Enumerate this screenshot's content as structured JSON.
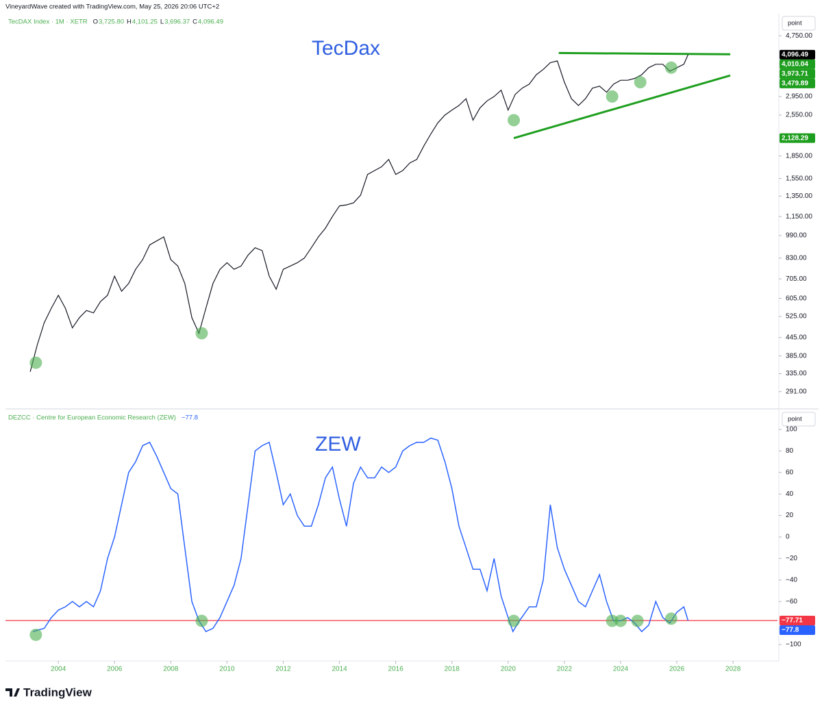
{
  "header": {
    "credit": "VineyardWave created with TradingView.com, May 25, 2026 20:06 UTC+2"
  },
  "footer": {
    "logo": "TradingView"
  },
  "chart_data": [
    {
      "type": "line",
      "log_scale": true,
      "annotation": "TecDax",
      "scale_button": "point",
      "ohlc": [
        {
          "label": "O",
          "value": "3,725.80"
        },
        {
          "label": "H",
          "value": "4,101.25"
        },
        {
          "label": "L",
          "value": "3,696.37"
        },
        {
          "label": "C",
          "value": "4,096.49"
        }
      ],
      "x": [
        2003.0,
        2003.25,
        2003.5,
        2003.75,
        2004.0,
        2004.25,
        2004.5,
        2004.75,
        2005.0,
        2005.25,
        2005.5,
        2005.75,
        2006.0,
        2006.25,
        2006.5,
        2006.75,
        2007.0,
        2007.25,
        2007.5,
        2007.75,
        2008.0,
        2008.25,
        2008.5,
        2008.75,
        2009.0,
        2009.25,
        2009.5,
        2009.75,
        2010.0,
        2010.25,
        2010.5,
        2010.75,
        2011.0,
        2011.25,
        2011.5,
        2011.75,
        2012.0,
        2012.25,
        2012.5,
        2012.75,
        2013.0,
        2013.25,
        2013.5,
        2013.75,
        2014.0,
        2014.25,
        2014.5,
        2014.75,
        2015.0,
        2015.25,
        2015.5,
        2015.75,
        2016.0,
        2016.25,
        2016.5,
        2016.75,
        2017.0,
        2017.25,
        2017.5,
        2017.75,
        2018.0,
        2018.25,
        2018.5,
        2018.75,
        2019.0,
        2019.25,
        2019.5,
        2019.75,
        2020.0,
        2020.25,
        2020.5,
        2020.75,
        2021.0,
        2021.25,
        2021.5,
        2021.75,
        2022.0,
        2022.25,
        2022.5,
        2022.75,
        2023.0,
        2023.25,
        2023.5,
        2023.75,
        2024.0,
        2024.25,
        2024.5,
        2024.75,
        2025.0,
        2025.25,
        2025.5,
        2025.75,
        2026.0,
        2026.25,
        2026.4
      ],
      "series": [
        {
          "name": "TecDAX Index · 1M · XETR",
          "color": "#131722",
          "values": [
            340,
            420,
            500,
            560,
            620,
            560,
            480,
            520,
            550,
            540,
            590,
            620,
            720,
            640,
            680,
            760,
            820,
            920,
            950,
            980,
            820,
            780,
            680,
            520,
            460,
            560,
            680,
            760,
            800,
            760,
            780,
            850,
            900,
            880,
            720,
            650,
            760,
            780,
            800,
            830,
            900,
            980,
            1050,
            1150,
            1250,
            1260,
            1280,
            1360,
            1600,
            1650,
            1700,
            1800,
            1600,
            1650,
            1750,
            1800,
            2000,
            2200,
            2400,
            2550,
            2650,
            2750,
            2900,
            2450,
            2700,
            2850,
            2950,
            3100,
            2650,
            3000,
            3150,
            3250,
            3500,
            3650,
            3850,
            3900,
            3300,
            2900,
            2750,
            2900,
            3150,
            3200,
            3050,
            3250,
            3350,
            3350,
            3400,
            3500,
            3700,
            3800,
            3800,
            3600,
            3700,
            3800,
            4096.49
          ]
        }
      ],
      "xlim": [
        2002.12,
        2029.58
      ],
      "ylim": [
        261,
        5590
      ],
      "yticks": [
        {
          "value": 4750,
          "label": "4,750.00"
        },
        {
          "value": 2950,
          "label": "2,950.00"
        },
        {
          "value": 2550,
          "label": "2,550.00"
        },
        {
          "value": 1850,
          "label": "1,850.00"
        },
        {
          "value": 1550,
          "label": "1,550.00"
        },
        {
          "value": 1350,
          "label": "1,350.00"
        },
        {
          "value": 1150,
          "label": "1,150.00"
        },
        {
          "value": 990,
          "label": "990.00"
        },
        {
          "value": 830,
          "label": "830.00"
        },
        {
          "value": 705,
          "label": "705.00"
        },
        {
          "value": 605,
          "label": "605.00"
        },
        {
          "value": 525,
          "label": "525.00"
        },
        {
          "value": 445,
          "label": "445.00"
        },
        {
          "value": 385,
          "label": "385.00"
        },
        {
          "value": 335,
          "label": "335.00"
        },
        {
          "value": 291,
          "label": "291.00"
        }
      ],
      "price_labels": [
        {
          "value": 4096.49,
          "label": "4,096.49",
          "color": "#000000"
        },
        {
          "value": 4010.04,
          "label": "4,010.04",
          "color": "#1e9e1e"
        },
        {
          "value": 3973.71,
          "label": "3,973.71",
          "color": "#1e9e1e"
        },
        {
          "value": 3479.89,
          "label": "3,479.89",
          "color": "#1e9e1e"
        },
        {
          "value": 2128.29,
          "label": "2,128.29",
          "color": "#1e9e1e"
        }
      ],
      "trendlines": [
        {
          "color": "#1e9e1e",
          "x": [
            2021.8,
            2027.9
          ],
          "y": [
            4150,
            4110
          ]
        },
        {
          "color": "#1e9e1e",
          "x": [
            2020.2,
            2027.9
          ],
          "y": [
            2128.29,
            3479.89
          ]
        }
      ],
      "highlights": {
        "x": [
          2003.2,
          2009.1,
          2020.2,
          2023.7,
          2024.7,
          2025.8
        ],
        "y": [
          365,
          460,
          2450,
          2950,
          3300,
          3700
        ]
      }
    },
    {
      "type": "line",
      "log_scale": false,
      "annotation": "ZEW",
      "scale_button": "point",
      "legend_value": "−77.8",
      "x": [
        2003.1,
        2003.5,
        2003.75,
        2004.0,
        2004.25,
        2004.5,
        2004.75,
        2005.0,
        2005.25,
        2005.5,
        2005.75,
        2006.0,
        2006.25,
        2006.5,
        2006.75,
        2007.0,
        2007.25,
        2007.5,
        2007.75,
        2008.0,
        2008.25,
        2008.5,
        2008.75,
        2009.0,
        2009.25,
        2009.5,
        2009.75,
        2010.0,
        2010.25,
        2010.5,
        2010.75,
        2011.0,
        2011.25,
        2011.5,
        2011.75,
        2012.0,
        2012.25,
        2012.5,
        2012.75,
        2013.0,
        2013.25,
        2013.5,
        2013.75,
        2014.0,
        2014.25,
        2014.5,
        2014.75,
        2015.0,
        2015.25,
        2015.5,
        2015.75,
        2016.0,
        2016.25,
        2016.5,
        2016.75,
        2017.0,
        2017.25,
        2017.5,
        2017.75,
        2018.0,
        2018.25,
        2018.5,
        2018.75,
        2019.0,
        2019.25,
        2019.5,
        2019.75,
        2020.0,
        2020.17,
        2020.4,
        2020.75,
        2021.0,
        2021.25,
        2021.5,
        2021.75,
        2022.0,
        2022.25,
        2022.5,
        2022.75,
        2023.0,
        2023.25,
        2023.5,
        2023.75,
        2024.0,
        2024.25,
        2024.5,
        2024.75,
        2025.0,
        2025.25,
        2025.5,
        2025.75,
        2026.0,
        2026.25,
        2026.4
      ],
      "series": [
        {
          "name": "DEZCC · Centre for European Economic Research (ZEW)",
          "color": "#2962ff",
          "values": [
            -88,
            -85,
            -75,
            -68,
            -65,
            -60,
            -65,
            -60,
            -65,
            -50,
            -20,
            0,
            30,
            60,
            70,
            85,
            88,
            75,
            60,
            45,
            40,
            -10,
            -60,
            -78,
            -88,
            -85,
            -75,
            -60,
            -45,
            -20,
            30,
            80,
            85,
            88,
            60,
            30,
            40,
            20,
            10,
            10,
            30,
            55,
            65,
            35,
            10,
            50,
            65,
            55,
            55,
            65,
            60,
            65,
            80,
            85,
            88,
            88,
            92,
            90,
            70,
            45,
            10,
            -10,
            -30,
            -30,
            -50,
            -20,
            -55,
            -75,
            -88,
            -78,
            -65,
            -65,
            -40,
            30,
            -10,
            -30,
            -45,
            -60,
            -65,
            -50,
            -35,
            -60,
            -78,
            -78,
            -75,
            -80,
            -88,
            -82,
            -60,
            -75,
            -80,
            -70,
            -65,
            -77.8
          ]
        }
      ],
      "xlim": [
        2002.12,
        2029.58
      ],
      "ylim": [
        -115.3,
        117.2
      ],
      "xticks": [
        2004,
        2006,
        2008,
        2010,
        2012,
        2014,
        2016,
        2018,
        2020,
        2022,
        2024,
        2026,
        2028
      ],
      "yticks": [
        100,
        80,
        60,
        40,
        20,
        0,
        {
          "value": -20,
          "label": "−20"
        },
        {
          "value": -40,
          "label": "−40"
        },
        {
          "value": -60,
          "label": "−60"
        },
        {
          "value": -100,
          "label": "−100"
        }
      ],
      "hline": {
        "value": -77.71,
        "color": "#f23645"
      },
      "price_labels": [
        {
          "value": -77.71,
          "label": "−77.71",
          "color": "#f23645"
        },
        {
          "value": -77.8,
          "label": "−77.8",
          "color": "#2962ff"
        }
      ],
      "highlights": {
        "x": [
          2003.2,
          2009.1,
          2020.2,
          2023.7,
          2024.0,
          2024.6,
          2025.8
        ],
        "y": [
          -91,
          -78,
          -78,
          -78,
          -78,
          -78,
          -76
        ]
      }
    }
  ]
}
